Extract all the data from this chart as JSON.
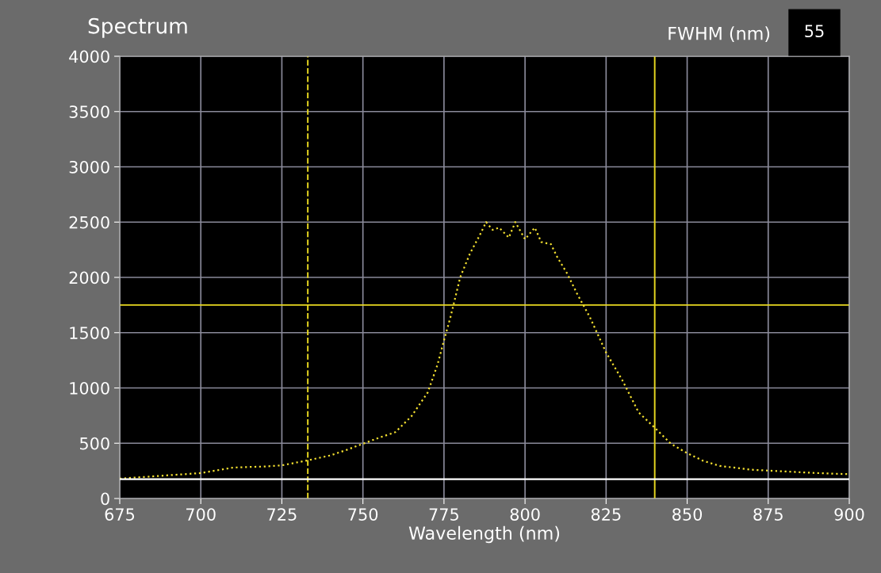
{
  "chart_data": {
    "type": "line",
    "title": "Spectrum",
    "xlabel": "Wavelength (nm)",
    "annotations": [
      "FWHM (nm)",
      "55"
    ],
    "series": [
      {
        "color": "#f5e130",
        "line_style": "dotted",
        "x": [
          675,
          680,
          690,
          700,
          710,
          720,
          725,
          733,
          740,
          745,
          750,
          755,
          760,
          765,
          770,
          773,
          775,
          777,
          780,
          783,
          786,
          788,
          790,
          792,
          795,
          797,
          800,
          803,
          805,
          808,
          810,
          813,
          816,
          820,
          825,
          830,
          835,
          840,
          845,
          850,
          855,
          860,
          870,
          880,
          890,
          900
        ],
        "values": [
          180,
          190,
          210,
          230,
          280,
          290,
          300,
          345,
          390,
          440,
          495,
          550,
          600,
          745,
          960,
          1210,
          1430,
          1640,
          2000,
          2215,
          2380,
          2500,
          2430,
          2450,
          2360,
          2500,
          2345,
          2450,
          2320,
          2300,
          2180,
          2035,
          1855,
          1640,
          1320,
          1070,
          780,
          640,
          495,
          410,
          340,
          295,
          260,
          245,
          230,
          220
        ]
      },
      {
        "color": "#ffffff",
        "line_style": "solid",
        "x": [
          675,
          900
        ],
        "values": [
          175,
          175
        ]
      }
    ],
    "ref_lines": [
      {
        "axis": "x",
        "value": 733,
        "color": "#e8d820",
        "line_style": "dashed"
      },
      {
        "axis": "x",
        "value": 840,
        "color": "#e8d820",
        "line_style": "solid"
      },
      {
        "axis": "y",
        "value": 1750,
        "color": "#e8d820",
        "line_style": "solid"
      }
    ],
    "xlim": [
      675,
      900
    ],
    "xticks": [
      675,
      700,
      725,
      750,
      775,
      800,
      825,
      850,
      875,
      900
    ],
    "ylim": [
      0,
      4000
    ],
    "yticks": [
      0,
      500,
      1000,
      1500,
      2000,
      2500,
      3000,
      3500,
      4000
    ],
    "grid": true,
    "legend": false
  }
}
